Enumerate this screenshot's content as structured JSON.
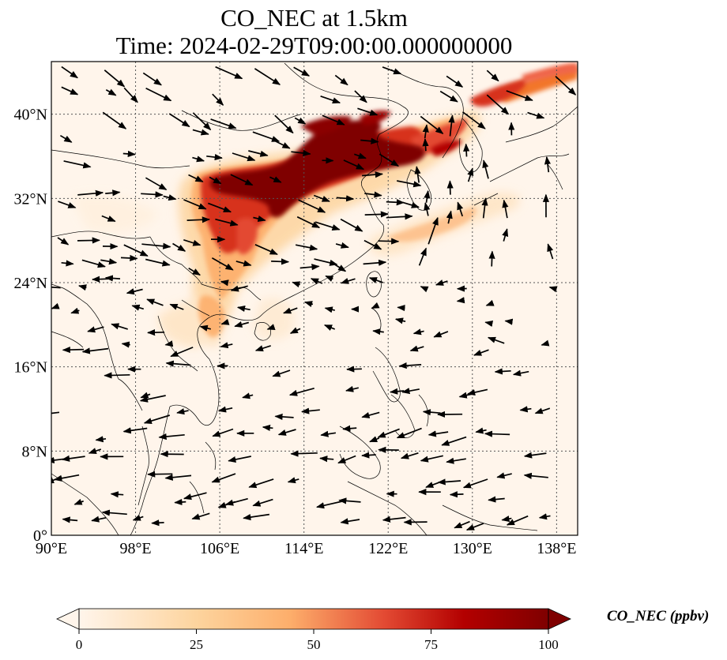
{
  "title": {
    "line1": "CO_NEC at 1.5km",
    "line2": "Time: 2024-02-29T09:00:00.000000000"
  },
  "map": {
    "lon_range": [
      90,
      140
    ],
    "lat_range": [
      0,
      45
    ],
    "lon_ticks": [
      {
        "value": 90,
        "label": "90°E"
      },
      {
        "value": 98,
        "label": "98°E"
      },
      {
        "value": 106,
        "label": "106°E"
      },
      {
        "value": 114,
        "label": "114°E"
      },
      {
        "value": 122,
        "label": "122°E"
      },
      {
        "value": 130,
        "label": "130°E"
      },
      {
        "value": 138,
        "label": "138°E"
      }
    ],
    "lat_ticks": [
      {
        "value": 0,
        "label": "0°"
      },
      {
        "value": 8,
        "label": "8°N"
      },
      {
        "value": 16,
        "label": "16°N"
      },
      {
        "value": 24,
        "label": "24°N"
      },
      {
        "value": 32,
        "label": "32°N"
      },
      {
        "value": 40,
        "label": "40°N"
      }
    ],
    "gridlines": true,
    "vectors": "wind"
  },
  "colorbar": {
    "label": "CO_NEC (ppbv)",
    "min": 0,
    "max": 100,
    "ticks": [
      {
        "value": 0,
        "label": "0"
      },
      {
        "value": 25,
        "label": "25"
      },
      {
        "value": 50,
        "label": "50"
      },
      {
        "value": 75,
        "label": "75"
      },
      {
        "value": 100,
        "label": "100"
      }
    ],
    "colors": [
      "#fff5eb",
      "#fdd49e",
      "#fdae6b",
      "#e34a33",
      "#b30000",
      "#7f0000"
    ],
    "extend": "both"
  }
}
